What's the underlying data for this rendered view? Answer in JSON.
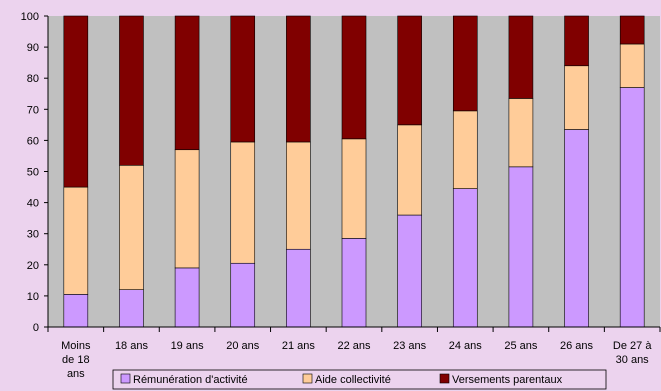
{
  "chart_data": {
    "type": "bar",
    "stacked": true,
    "categories": [
      [
        "Moins",
        "de 18",
        "ans"
      ],
      [
        "18 ans"
      ],
      [
        "19 ans"
      ],
      [
        "20 ans"
      ],
      [
        "21 ans"
      ],
      [
        "22 ans"
      ],
      [
        "23 ans"
      ],
      [
        "24 ans"
      ],
      [
        "25 ans"
      ],
      [
        "26 ans"
      ],
      [
        "De 27 à",
        "30 ans"
      ]
    ],
    "series": [
      {
        "name": "Rémunération d'activité",
        "color": "#cc99ff",
        "values": [
          10.5,
          12,
          19,
          20.5,
          25,
          28.5,
          36,
          44.5,
          51.5,
          63.5,
          77
        ]
      },
      {
        "name": "Aide collectivité",
        "color": "#ffcc99",
        "values": [
          34.5,
          40,
          38,
          39,
          34.5,
          32,
          29,
          25,
          22,
          20.5,
          14
        ]
      },
      {
        "name": "Versements parentaux",
        "color": "#800000",
        "values": [
          55,
          48,
          43,
          40.5,
          40.5,
          39.5,
          35,
          30.5,
          26.5,
          16,
          9
        ]
      }
    ],
    "y_ticks": [
      0,
      10,
      20,
      30,
      40,
      50,
      60,
      70,
      80,
      90,
      100
    ],
    "ylim": [
      0,
      100
    ],
    "grid": false,
    "legend_position": "bottom",
    "plot_background": "#c0c0c0"
  }
}
